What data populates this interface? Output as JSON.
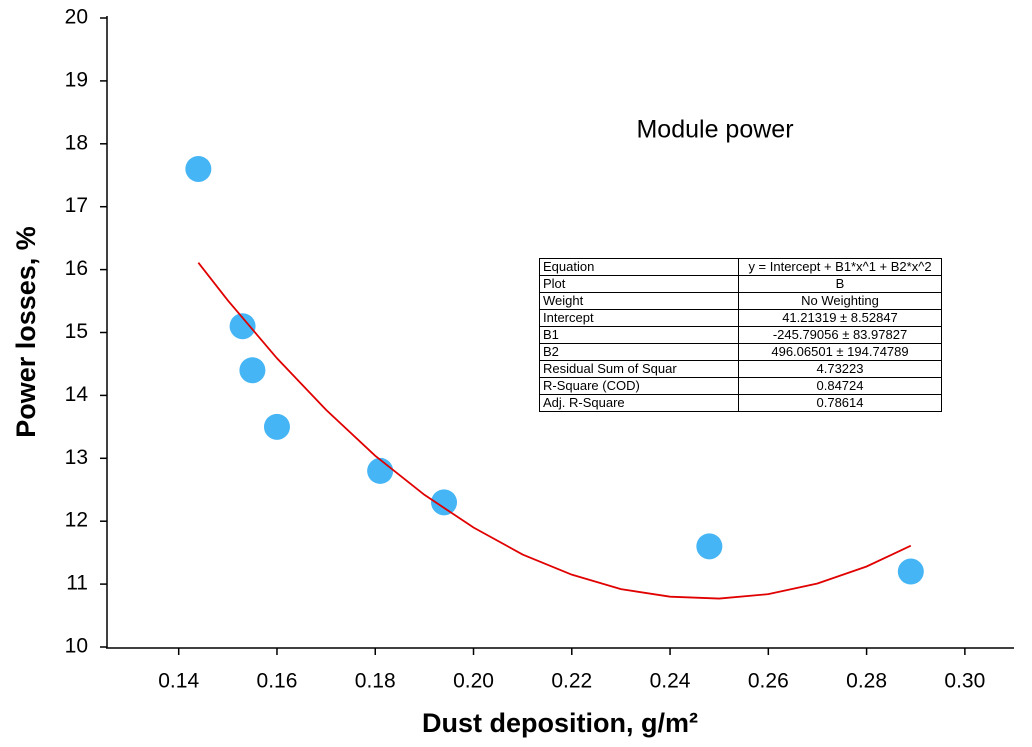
{
  "chart_data": {
    "type": "scatter",
    "title": "Module power",
    "xlabel": "Dust deposition, g/m²",
    "ylabel": "Power losses, %",
    "xlim": [
      0.125,
      0.31
    ],
    "ylim": [
      10,
      20
    ],
    "xticks": [
      0.14,
      0.16,
      0.18,
      {
        "value": 0.2,
        "label": "0.20"
      },
      0.22,
      0.24,
      0.26,
      0.28,
      {
        "value": 0.3,
        "label": "0.30"
      }
    ],
    "yticks": [
      10,
      11,
      12,
      13,
      14,
      15,
      16,
      17,
      18,
      19,
      20
    ],
    "series": [
      {
        "style": "markers",
        "color": "#45b5f5",
        "x": [
          0.144,
          0.153,
          0.155,
          0.16,
          0.181,
          0.194,
          0.248,
          0.289
        ],
        "values": [
          17.6,
          15.1,
          14.4,
          13.5,
          12.8,
          12.3,
          11.6,
          11.2
        ]
      },
      {
        "style": "line",
        "color": "#e00000",
        "x": [
          0.144,
          0.15,
          0.16,
          0.17,
          0.18,
          0.19,
          0.2,
          0.21,
          0.22,
          0.23,
          0.24,
          0.25,
          0.26,
          0.27,
          0.28,
          0.289
        ],
        "values": [
          16.11,
          15.51,
          14.59,
          13.77,
          13.04,
          12.42,
          11.9,
          11.47,
          11.15,
          10.92,
          10.8,
          10.77,
          10.84,
          11.01,
          11.28,
          11.61
        ]
      }
    ],
    "table": {
      "rows": [
        [
          "Equation",
          "y = Intercept + B1*x^1 + B2*x^2"
        ],
        [
          "Plot",
          "B"
        ],
        [
          "Weight",
          "No Weighting"
        ],
        [
          "Intercept",
          "41.21319 ± 8.52847"
        ],
        [
          "B1",
          "-245.79056 ± 83.97827"
        ],
        [
          "B2",
          "496.06501 ± 194.74789"
        ],
        [
          "Residual Sum of Squar",
          "4.73223"
        ],
        [
          "R-Square (COD)",
          "0.84724"
        ],
        [
          "Adj. R-Square",
          "0.78614"
        ]
      ]
    }
  }
}
